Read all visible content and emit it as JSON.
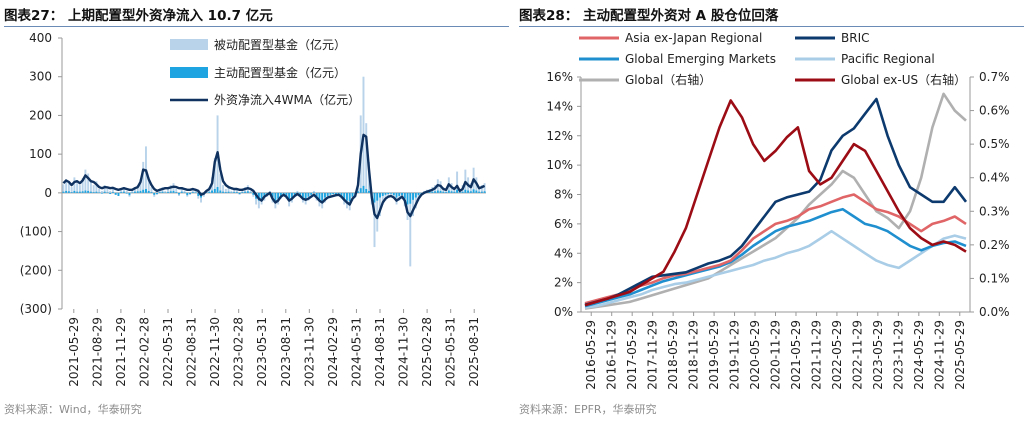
{
  "colors": {
    "passive": "#b8d3ea",
    "active": "#1ea4e0",
    "wma": "#0f3260",
    "asia": "#e06567",
    "bric": "#0d3a6e",
    "gem": "#1f8fcf",
    "pacific": "#a9cde6",
    "global": "#b0b0b0",
    "exus": "#9c0c14",
    "rule": "#6a8bb5"
  },
  "left": {
    "title": "图表27：  上期配置型外资净流入 10.7 亿元",
    "source": "资料来源：Wind，华泰研究",
    "chart_data": {
      "type": "bar",
      "ylim": [
        -300,
        400
      ],
      "yticks": [
        400,
        300,
        200,
        100,
        0,
        -100,
        -200,
        -300
      ],
      "ytick_labels": [
        "400",
        "300",
        "200",
        "100",
        "0",
        "(100)",
        "(200)",
        "(300)"
      ],
      "x_labels": [
        "2021-05-29",
        "2021-08-29",
        "2021-11-29",
        "2022-02-28",
        "2022-05-31",
        "2022-08-31",
        "2022-11-30",
        "2023-02-28",
        "2023-05-31",
        "2023-08-31",
        "2023-11-30",
        "2024-02-29",
        "2024-05-31",
        "2024-08-31",
        "2024-11-30",
        "2025-02-28",
        "2025-05-31",
        "2025-08-31"
      ],
      "legend": [
        "被动配置型基金（亿元）",
        "主动配置型基金（亿元）",
        "外资净流入4WMA（亿元）"
      ],
      "series": [
        {
          "name": "外资净流入4WMA（亿元）",
          "type": "line",
          "values": [
            25,
            32,
            28,
            20,
            28,
            30,
            25,
            32,
            45,
            38,
            30,
            28,
            22,
            15,
            12,
            15,
            14,
            12,
            13,
            10,
            8,
            10,
            12,
            10,
            8,
            8,
            12,
            15,
            28,
            60,
            58,
            35,
            20,
            10,
            5,
            8,
            10,
            12,
            12,
            14,
            16,
            15,
            12,
            12,
            10,
            8,
            8,
            10,
            8,
            5,
            -5,
            -2,
            5,
            10,
            25,
            80,
            105,
            60,
            30,
            20,
            15,
            12,
            10,
            10,
            8,
            8,
            10,
            12,
            10,
            5,
            -5,
            -15,
            -20,
            -10,
            -5,
            0,
            -15,
            -25,
            -20,
            -10,
            -5,
            -10,
            -20,
            -15,
            -8,
            -3,
            -8,
            -15,
            -18,
            -15,
            -10,
            -5,
            -12,
            -20,
            -25,
            -18,
            -12,
            -10,
            -8,
            -6,
            -5,
            -10,
            -18,
            -25,
            -30,
            -15,
            -8,
            20,
            100,
            150,
            145,
            60,
            -10,
            -55,
            -65,
            -45,
            -25,
            -15,
            -10,
            -8,
            -12,
            -20,
            -15,
            -10,
            -20,
            -50,
            -60,
            -45,
            -30,
            -15,
            -5,
            0,
            3,
            5,
            8,
            12,
            20,
            18,
            10,
            8,
            22,
            15,
            10,
            18,
            5,
            10,
            28,
            20,
            15,
            35,
            25,
            12,
            15,
            18
          ]
        },
        {
          "name": "被动配置型基金（亿元）",
          "type": "bar",
          "values": [
            22,
            35,
            30,
            15,
            40,
            25,
            20,
            38,
            60,
            50,
            30,
            20,
            30,
            10,
            5,
            20,
            10,
            5,
            15,
            -5,
            -8,
            10,
            15,
            5,
            -10,
            5,
            15,
            20,
            35,
            80,
            120,
            40,
            15,
            -10,
            -5,
            10,
            15,
            5,
            12,
            20,
            25,
            10,
            -8,
            15,
            5,
            -10,
            -5,
            10,
            5,
            -15,
            -25,
            -10,
            5,
            15,
            40,
            90,
            200,
            50,
            20,
            10,
            15,
            5,
            10,
            8,
            -5,
            10,
            15,
            20,
            5,
            -10,
            -30,
            -40,
            -30,
            -20,
            -10,
            5,
            -25,
            -40,
            -30,
            -15,
            -5,
            -15,
            -35,
            -25,
            -10,
            5,
            -10,
            -25,
            -30,
            -20,
            -10,
            5,
            -20,
            -35,
            -40,
            -25,
            -15,
            -10,
            -5,
            -8,
            -5,
            -15,
            -30,
            -40,
            -45,
            -20,
            -10,
            40,
            200,
            300,
            180,
            80,
            -30,
            -140,
            -100,
            -60,
            -30,
            -20,
            -10,
            -5,
            -15,
            -30,
            -20,
            -15,
            -35,
            -70,
            -190,
            -60,
            -40,
            -20,
            -5,
            5,
            8,
            10,
            15,
            20,
            35,
            30,
            15,
            10,
            40,
            25,
            15,
            55,
            10,
            20,
            60,
            40,
            25,
            65,
            40,
            15,
            20,
            25
          ]
        },
        {
          "name": "主动配置型基金（亿元）",
          "type": "bar",
          "values": [
            3,
            5,
            4,
            2,
            5,
            3,
            3,
            4,
            6,
            5,
            3,
            2,
            3,
            1,
            -2,
            3,
            1,
            -3,
            2,
            -5,
            -8,
            2,
            3,
            -2,
            -6,
            1,
            3,
            4,
            5,
            8,
            10,
            5,
            2,
            -5,
            -3,
            2,
            3,
            1,
            2,
            4,
            5,
            2,
            -4,
            3,
            1,
            -6,
            -3,
            2,
            1,
            -8,
            -12,
            -5,
            1,
            3,
            6,
            10,
            15,
            6,
            3,
            2,
            3,
            1,
            2,
            2,
            -3,
            2,
            3,
            4,
            1,
            -5,
            -15,
            -20,
            -15,
            -10,
            -5,
            1,
            -12,
            -20,
            -15,
            -8,
            -3,
            -8,
            -18,
            -12,
            -5,
            1,
            -5,
            -12,
            -15,
            -10,
            -5,
            1,
            -10,
            -18,
            -20,
            -12,
            -8,
            -5,
            -3,
            -4,
            -3,
            -8,
            -15,
            -20,
            -22,
            -10,
            -5,
            4,
            12,
            18,
            10,
            5,
            -10,
            -25,
            -20,
            -12,
            -8,
            -5,
            -3,
            -2,
            -6,
            -12,
            -8,
            -6,
            -15,
            -30,
            -28,
            -18,
            -12,
            -6,
            -2,
            1,
            2,
            2,
            3,
            4,
            6,
            5,
            3,
            2,
            6,
            4,
            3,
            8,
            2,
            3,
            8,
            6,
            4,
            9,
            6,
            3,
            3,
            4
          ]
        }
      ]
    }
  },
  "right": {
    "title": "图表28：  主动配置型外资对 A 股仓位回落",
    "source": "资料来源：EPFR，华泰研究",
    "chart_data": {
      "type": "line",
      "ylim_left": [
        0,
        16
      ],
      "ylim_right": [
        0,
        0.7
      ],
      "yticks_left": [
        "0%",
        "2%",
        "4%",
        "6%",
        "8%",
        "10%",
        "12%",
        "14%",
        "16%"
      ],
      "yticks_right": [
        "0.0%",
        "0.1%",
        "0.2%",
        "0.3%",
        "0.4%",
        "0.5%",
        "0.6%",
        "0.7%"
      ],
      "x_labels": [
        "2016-05-29",
        "2016-11-29",
        "2017-05-29",
        "2017-11-29",
        "2018-05-29",
        "2018-11-29",
        "2019-05-29",
        "2019-11-29",
        "2020-05-29",
        "2020-11-29",
        "2021-05-29",
        "2021-11-29",
        "2022-05-29",
        "2022-11-29",
        "2023-05-29",
        "2023-11-29",
        "2024-05-29",
        "2024-11-29",
        "2025-05-29"
      ],
      "legend": [
        "Asia ex-Japan Regional",
        "BRIC",
        "Global Emerging Markets",
        "Pacific Regional",
        "Global（右轴）",
        "Global ex-US（右轴）"
      ],
      "series": [
        {
          "name": "Asia ex-Japan Regional",
          "axis": "left",
          "values": [
            0.6,
            0.8,
            1.0,
            1.2,
            1.5,
            1.8,
            2.0,
            2.3,
            2.5,
            2.6,
            2.8,
            3.0,
            3.2,
            3.5,
            4.2,
            5.0,
            5.5,
            6.0,
            6.2,
            6.5,
            7.0,
            7.2,
            7.5,
            7.8,
            8.0,
            7.5,
            7.0,
            6.8,
            6.5,
            6.0,
            5.5,
            6.0,
            6.2,
            6.5,
            6.0
          ]
        },
        {
          "name": "BRIC",
          "axis": "left",
          "values": [
            0.5,
            0.7,
            0.9,
            1.2,
            1.6,
            2.0,
            2.4,
            2.5,
            2.6,
            2.7,
            3.0,
            3.3,
            3.5,
            3.8,
            4.5,
            5.5,
            6.5,
            7.5,
            7.8,
            8.0,
            8.2,
            9.0,
            11.0,
            12.0,
            12.5,
            13.5,
            14.5,
            12.0,
            10.0,
            8.5,
            8.0,
            7.5,
            7.5,
            8.5,
            7.5
          ]
        },
        {
          "name": "Global Emerging Markets",
          "axis": "left",
          "values": [
            0.4,
            0.6,
            0.8,
            1.0,
            1.2,
            1.5,
            1.8,
            2.1,
            2.3,
            2.5,
            2.7,
            2.9,
            3.1,
            3.4,
            3.9,
            4.5,
            5.0,
            5.5,
            5.8,
            6.0,
            6.2,
            6.5,
            6.8,
            7.0,
            6.5,
            6.0,
            5.8,
            5.5,
            5.0,
            4.5,
            4.2,
            4.5,
            4.7,
            4.8,
            4.5
          ]
        },
        {
          "name": "Pacific Regional",
          "axis": "left",
          "values": [
            0.3,
            0.4,
            0.6,
            0.8,
            1.0,
            1.2,
            1.5,
            1.7,
            1.9,
            2.0,
            2.2,
            2.4,
            2.6,
            2.8,
            3.0,
            3.2,
            3.5,
            3.7,
            4.0,
            4.2,
            4.5,
            5.0,
            5.5,
            5.0,
            4.5,
            4.0,
            3.5,
            3.2,
            3.0,
            3.5,
            4.0,
            4.5,
            5.0,
            5.2,
            5.0
          ]
        },
        {
          "name": "Global（右轴）",
          "axis": "right",
          "values": [
            0.01,
            0.015,
            0.02,
            0.025,
            0.03,
            0.04,
            0.05,
            0.06,
            0.07,
            0.08,
            0.09,
            0.1,
            0.12,
            0.14,
            0.16,
            0.18,
            0.2,
            0.22,
            0.25,
            0.28,
            0.32,
            0.35,
            0.38,
            0.42,
            0.4,
            0.35,
            0.3,
            0.28,
            0.25,
            0.3,
            0.4,
            0.55,
            0.65,
            0.6,
            0.57
          ]
        },
        {
          "name": "Global ex-US（右轴）",
          "axis": "right",
          "values": [
            0.02,
            0.03,
            0.04,
            0.05,
            0.06,
            0.08,
            0.1,
            0.12,
            0.18,
            0.25,
            0.35,
            0.45,
            0.55,
            0.63,
            0.58,
            0.5,
            0.45,
            0.48,
            0.52,
            0.55,
            0.42,
            0.38,
            0.4,
            0.45,
            0.5,
            0.48,
            0.42,
            0.36,
            0.3,
            0.25,
            0.22,
            0.2,
            0.21,
            0.2,
            0.18
          ]
        }
      ]
    }
  }
}
